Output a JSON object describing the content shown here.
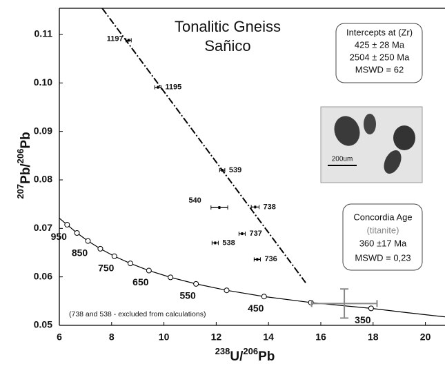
{
  "chart_data": {
    "type": "scatter",
    "title": [
      "Tonalitic Gneiss",
      "Sañico"
    ],
    "xlabel": [
      "238",
      "U/",
      "206",
      "Pb"
    ],
    "ylabel": [
      "207",
      "Pb/",
      "206",
      "Pb"
    ],
    "xlim": [
      6,
      20.75
    ],
    "ylim": [
      0.05,
      0.1154
    ],
    "xticks": [
      6,
      8,
      10,
      12,
      14,
      16,
      18,
      20
    ],
    "yticks": [
      0.05,
      0.06,
      0.07,
      0.08,
      0.09,
      {
        "value": 0.1,
        "label": "0.10"
      },
      0.11
    ],
    "points": {
      "x": [
        8.65,
        9.77,
        12.23,
        12.12,
        13.49,
        12.99,
        11.96,
        13.57
      ],
      "y": [
        0.1088,
        0.0991,
        0.082,
        0.0743,
        0.0744,
        0.0689,
        0.067,
        0.0636
      ],
      "xerr": [
        0.1,
        0.12,
        0.1,
        0.32,
        0.15,
        0.12,
        0.12,
        0.12
      ],
      "labels": [
        "1197",
        "1195",
        "539",
        "540",
        "738",
        "737",
        "538",
        "736"
      ]
    },
    "titanite": {
      "x": 16.9,
      "y": 0.0545,
      "xerr": 1.25,
      "yerr": 0.003
    },
    "concordia": {
      "x": [
        6.298,
        6.674,
        7.095,
        7.568,
        8.105,
        8.718,
        9.426,
        10.252,
        11.228,
        12.399,
        13.831,
        15.621,
        17.923
      ],
      "y": [
        0.07075,
        0.06905,
        0.0674,
        0.0658,
        0.06425,
        0.06277,
        0.0613,
        0.0599,
        0.05855,
        0.05722,
        0.05594,
        0.0547,
        0.0535
      ],
      "labels": [
        "950",
        null,
        "850",
        null,
        "750",
        null,
        "650",
        null,
        "550",
        null,
        "450",
        null,
        "350"
      ]
    },
    "discordia": {
      "x": [
        7.64,
        15.42
      ],
      "y": [
        0.1154,
        0.0588
      ]
    },
    "intercepts_box": [
      "Intercepts at (Zr)",
      "425 ± 28 Ma",
      "2504 ± 250 Ma",
      "MSWD = 62"
    ],
    "concordia_box": [
      "Concordia Age",
      "(titanite)",
      "360 ±17 Ma",
      "MSWD = 0,23"
    ],
    "note": "(738 and 538 - excluded from calculations)",
    "scale_label": "200um"
  }
}
